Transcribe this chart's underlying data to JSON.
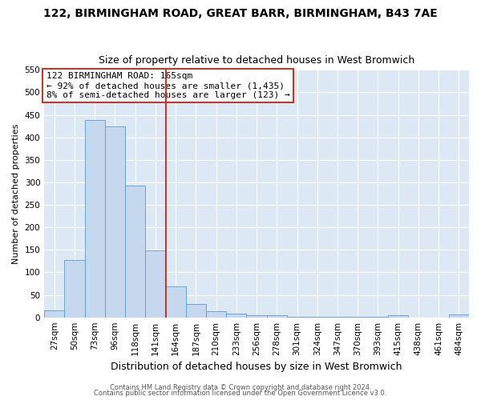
{
  "title": "122, BIRMINGHAM ROAD, GREAT BARR, BIRMINGHAM, B43 7AE",
  "subtitle": "Size of property relative to detached houses in West Bromwich",
  "xlabel": "Distribution of detached houses by size in West Bromwich",
  "ylabel": "Number of detached properties",
  "bar_labels": [
    "27sqm",
    "50sqm",
    "73sqm",
    "96sqm",
    "118sqm",
    "141sqm",
    "164sqm",
    "187sqm",
    "210sqm",
    "233sqm",
    "256sqm",
    "278sqm",
    "301sqm",
    "324sqm",
    "347sqm",
    "370sqm",
    "393sqm",
    "415sqm",
    "438sqm",
    "461sqm",
    "484sqm"
  ],
  "bar_heights": [
    15,
    128,
    438,
    425,
    292,
    148,
    68,
    29,
    13,
    8,
    4,
    4,
    1,
    1,
    1,
    1,
    1,
    4,
    0,
    0,
    6
  ],
  "bar_color": "#c5d8ed",
  "bar_edge_color": "#5b9bd5",
  "vline_color": "#c0392b",
  "ylim": [
    0,
    550
  ],
  "yticks": [
    0,
    50,
    100,
    150,
    200,
    250,
    300,
    350,
    400,
    450,
    500,
    550
  ],
  "annotation_title": "122 BIRMINGHAM ROAD: 165sqm",
  "annotation_line1": "← 92% of detached houses are smaller (1,435)",
  "annotation_line2": "8% of semi-detached houses are larger (123) →",
  "annotation_box_color": "#c0392b",
  "plot_bg_color": "#dce9f5",
  "fig_bg_color": "#ffffff",
  "footer1": "Contains HM Land Registry data © Crown copyright and database right 2024.",
  "footer2": "Contains public sector information licensed under the Open Government Licence v3.0.",
  "title_fontsize": 10,
  "subtitle_fontsize": 9,
  "xlabel_fontsize": 9,
  "ylabel_fontsize": 8,
  "tick_fontsize": 7.5,
  "annotation_fontsize": 8,
  "footer_fontsize": 6
}
